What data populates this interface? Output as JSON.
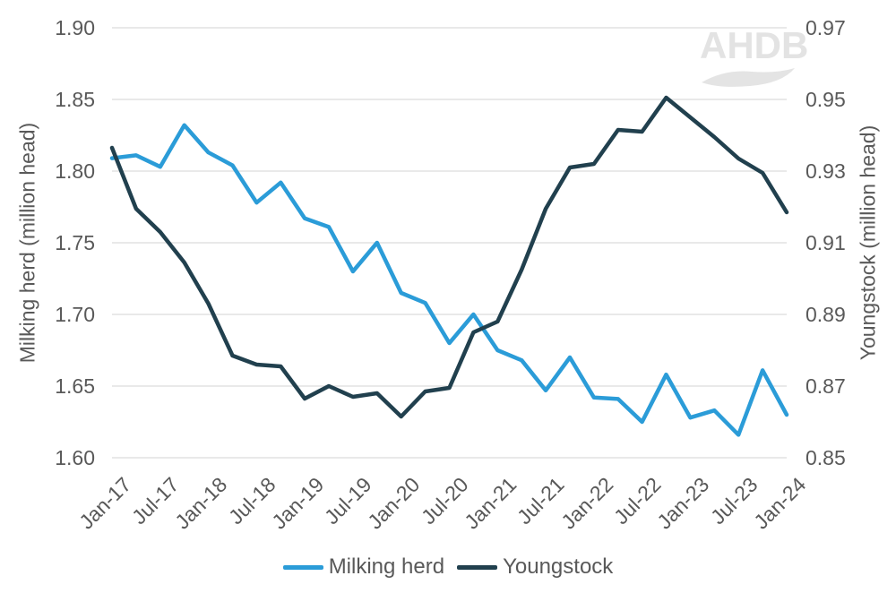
{
  "watermark": {
    "text": "AHDB"
  },
  "legend": {
    "items": [
      {
        "label": "Milking herd",
        "color": "#2b9cd8"
      },
      {
        "label": "Youngstock",
        "color": "#21404e"
      }
    ]
  },
  "chart_data": {
    "type": "line",
    "title": "",
    "x": [
      "Jan-17",
      "Apr-17",
      "Jul-17",
      "Oct-17",
      "Jan-18",
      "Apr-18",
      "Jul-18",
      "Oct-18",
      "Jan-19",
      "Apr-19",
      "Jul-19",
      "Oct-19",
      "Jan-20",
      "Apr-20",
      "Jul-20",
      "Oct-20",
      "Jan-21",
      "Apr-21",
      "Jul-21",
      "Oct-21",
      "Jan-22",
      "Apr-22",
      "Jul-22",
      "Oct-22",
      "Jan-23",
      "Apr-23",
      "Jul-23",
      "Oct-23",
      "Jan-24"
    ],
    "x_tick_labels": [
      "Jan-17",
      "Jul-17",
      "Jan-18",
      "Jul-18",
      "Jan-19",
      "Jul-19",
      "Jan-20",
      "Jul-20",
      "Jan-21",
      "Jul-21",
      "Jan-22",
      "Jul-22",
      "Jan-23",
      "Jul-23",
      "Jan-24"
    ],
    "series": [
      {
        "name": "Milking herd",
        "axis": "left",
        "color": "#2b9cd8",
        "values": [
          1.809,
          1.811,
          1.803,
          1.832,
          1.813,
          1.804,
          1.778,
          1.792,
          1.767,
          1.761,
          1.73,
          1.75,
          1.715,
          1.708,
          1.68,
          1.7,
          1.675,
          1.668,
          1.647,
          1.67,
          1.642,
          1.641,
          1.625,
          1.658,
          1.628,
          1.633,
          1.616,
          1.661,
          1.63
        ]
      },
      {
        "name": "Youngstock",
        "axis": "right",
        "color": "#21404e",
        "values": [
          0.9365,
          0.9195,
          0.913,
          0.9045,
          0.893,
          0.8785,
          0.876,
          0.8755,
          0.8665,
          0.87,
          0.867,
          0.868,
          0.8615,
          0.8685,
          0.8695,
          0.885,
          0.888,
          0.9025,
          0.9195,
          0.931,
          0.932,
          0.9415,
          0.941,
          0.9505,
          0.945,
          0.9395,
          0.9335,
          0.9295,
          0.9185
        ]
      }
    ],
    "left_axis": {
      "title": "Milking herd (million head)",
      "min": 1.6,
      "max": 1.9,
      "ticks": [
        "1.90",
        "1.85",
        "1.80",
        "1.75",
        "1.70",
        "1.65",
        "1.60"
      ]
    },
    "right_axis": {
      "title": "Youngstock (million head)",
      "min": 0.85,
      "max": 0.97,
      "ticks": [
        "0.97",
        "0.95",
        "0.93",
        "0.91",
        "0.89",
        "0.87",
        "0.85"
      ]
    },
    "grid": true,
    "gridline_color": "#dcdcdc",
    "legend_position": "bottom"
  }
}
